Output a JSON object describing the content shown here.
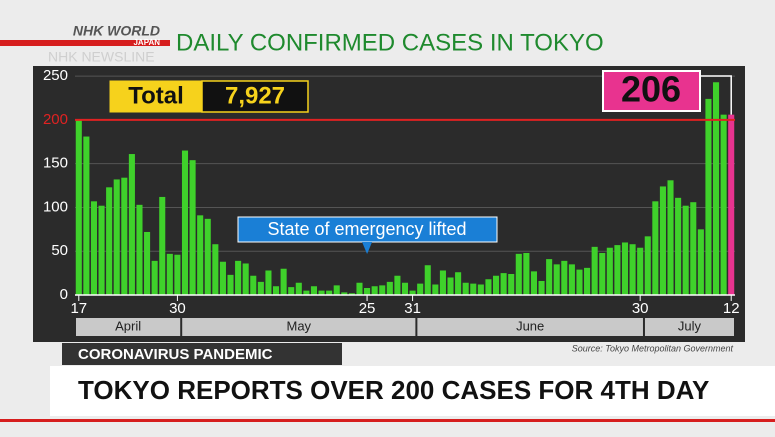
{
  "brand": {
    "name": "NHK WORLD",
    "region": "JAPAN",
    "program": "NHK NEWSLINE"
  },
  "chart_data": {
    "type": "bar",
    "title": "DAILY CONFIRMED CASES IN TOKYO",
    "categories": [
      "17",
      null,
      null,
      null,
      null,
      null,
      null,
      null,
      null,
      null,
      null,
      null,
      null,
      "30",
      null,
      null,
      null,
      null,
      null,
      null,
      null,
      null,
      null,
      null,
      null,
      null,
      null,
      null,
      null,
      null,
      null,
      null,
      null,
      null,
      null,
      null,
      null,
      null,
      "25",
      null,
      null,
      null,
      null,
      null,
      "31",
      null,
      null,
      null,
      null,
      null,
      null,
      null,
      null,
      null,
      null,
      null,
      null,
      null,
      null,
      null,
      null,
      null,
      null,
      null,
      null,
      null,
      null,
      null,
      null,
      null,
      null,
      null,
      null,
      null,
      "30",
      null,
      null,
      null,
      null,
      null,
      null,
      null,
      null,
      null,
      null,
      null,
      "12"
    ],
    "months": [
      "April",
      "May",
      "June",
      "July"
    ],
    "values": [
      201,
      181,
      107,
      102,
      123,
      132,
      134,
      161,
      103,
      72,
      39,
      112,
      47,
      46,
      165,
      154,
      91,
      87,
      58,
      38,
      23,
      39,
      36,
      22,
      15,
      28,
      10,
      30,
      9,
      14,
      5,
      10,
      5,
      5,
      11,
      3,
      2,
      14,
      8,
      10,
      11,
      15,
      22,
      14,
      5,
      13,
      34,
      12,
      28,
      20,
      26,
      14,
      13,
      12,
      18,
      22,
      25,
      24,
      47,
      48,
      27,
      16,
      41,
      35,
      39,
      35,
      29,
      31,
      55,
      48,
      54,
      57,
      60,
      58,
      54,
      67,
      107,
      124,
      131,
      111,
      102,
      106,
      75,
      224,
      243,
      206,
      206
    ],
    "color": "#3fd12b",
    "highlight_color": "#e8338f",
    "ylim": [
      0,
      257
    ],
    "yticks": [
      0,
      50,
      100,
      150,
      200,
      250
    ],
    "reference_line": {
      "value": 200,
      "color": "#e02222"
    },
    "total": {
      "label": "Total",
      "value": "7,927"
    },
    "latest_label": "206",
    "annotation": "State of emergency lifted",
    "source": "Source: Tokyo Metropolitan Government"
  },
  "banner": {
    "tag": "CORONAVIRUS PANDEMIC",
    "headline": "TOKYO REPORTS OVER 200 CASES FOR 4TH DAY"
  }
}
